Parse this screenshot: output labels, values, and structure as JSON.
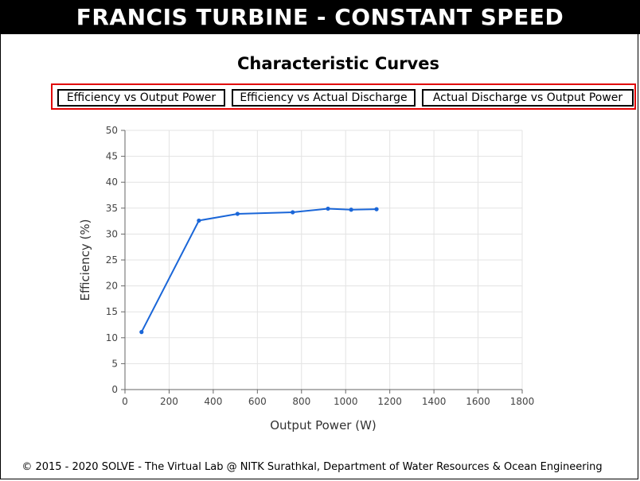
{
  "header": {
    "title": "FRANCIS TURBINE - CONSTANT SPEED"
  },
  "section": {
    "title": "Characteristic Curves"
  },
  "tabs": [
    {
      "label": "Efficiency vs Output Power"
    },
    {
      "label": "Efficiency vs Actual Discharge"
    },
    {
      "label": "Actual Discharge vs Output Power"
    }
  ],
  "chart_data": {
    "type": "line",
    "title": "",
    "xlabel": "Output Power (W)",
    "ylabel": "Efficiency (%)",
    "xlim": [
      0,
      1800
    ],
    "ylim": [
      0,
      50
    ],
    "xticks": [
      0,
      200,
      400,
      600,
      800,
      1000,
      1200,
      1400,
      1600,
      1800
    ],
    "yticks": [
      0,
      5,
      10,
      15,
      20,
      25,
      30,
      35,
      40,
      45,
      50
    ],
    "grid": true,
    "series": [
      {
        "color": "#1a66d8",
        "points": [
          {
            "x": 75,
            "y": 11.1
          },
          {
            "x": 335,
            "y": 32.6
          },
          {
            "x": 510,
            "y": 33.9
          },
          {
            "x": 760,
            "y": 34.2
          },
          {
            "x": 920,
            "y": 34.9
          },
          {
            "x": 1025,
            "y": 34.7
          },
          {
            "x": 1140,
            "y": 34.8
          }
        ]
      }
    ]
  },
  "footer": {
    "text": "© 2015 - 2020 SOLVE - The Virtual Lab @ NITK Surathkal, Department of Water Resources & Ocean Engineering"
  }
}
